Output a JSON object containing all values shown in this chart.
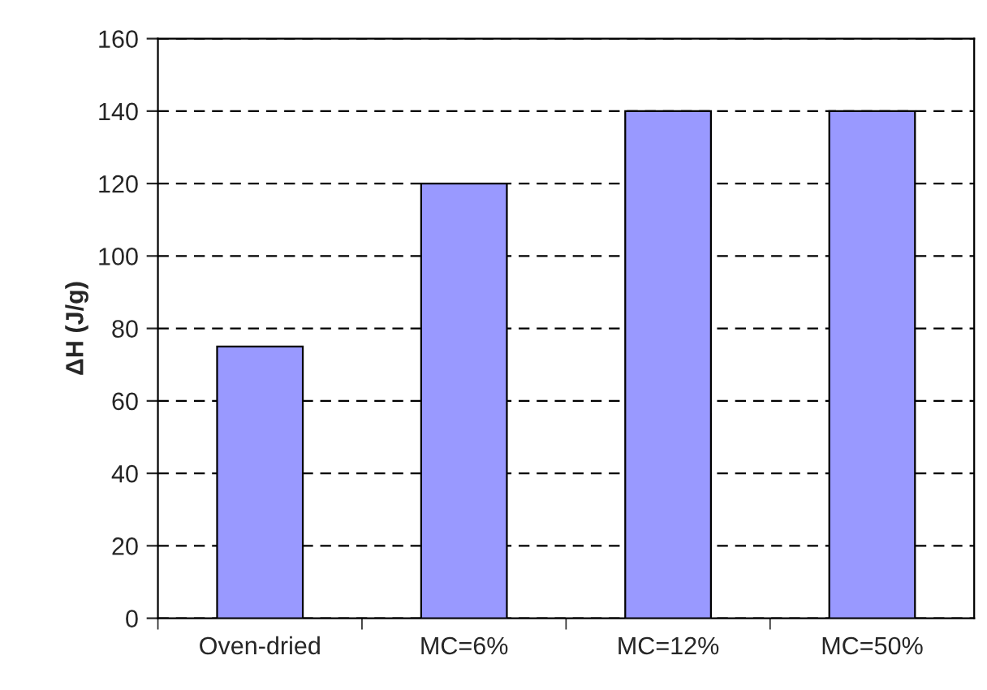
{
  "chart_data": {
    "type": "bar",
    "ylabel": "ΔH (J/g)",
    "categories": [
      "Oven-dried",
      "MC=6%",
      "MC=12%",
      "MC=50%"
    ],
    "values": [
      75,
      120,
      140,
      140
    ],
    "color": "#9999ff",
    "ylim": [
      0,
      160
    ],
    "yticks": [
      0,
      20,
      40,
      60,
      80,
      100,
      120,
      140,
      160
    ],
    "grid": "y",
    "legend": false
  }
}
